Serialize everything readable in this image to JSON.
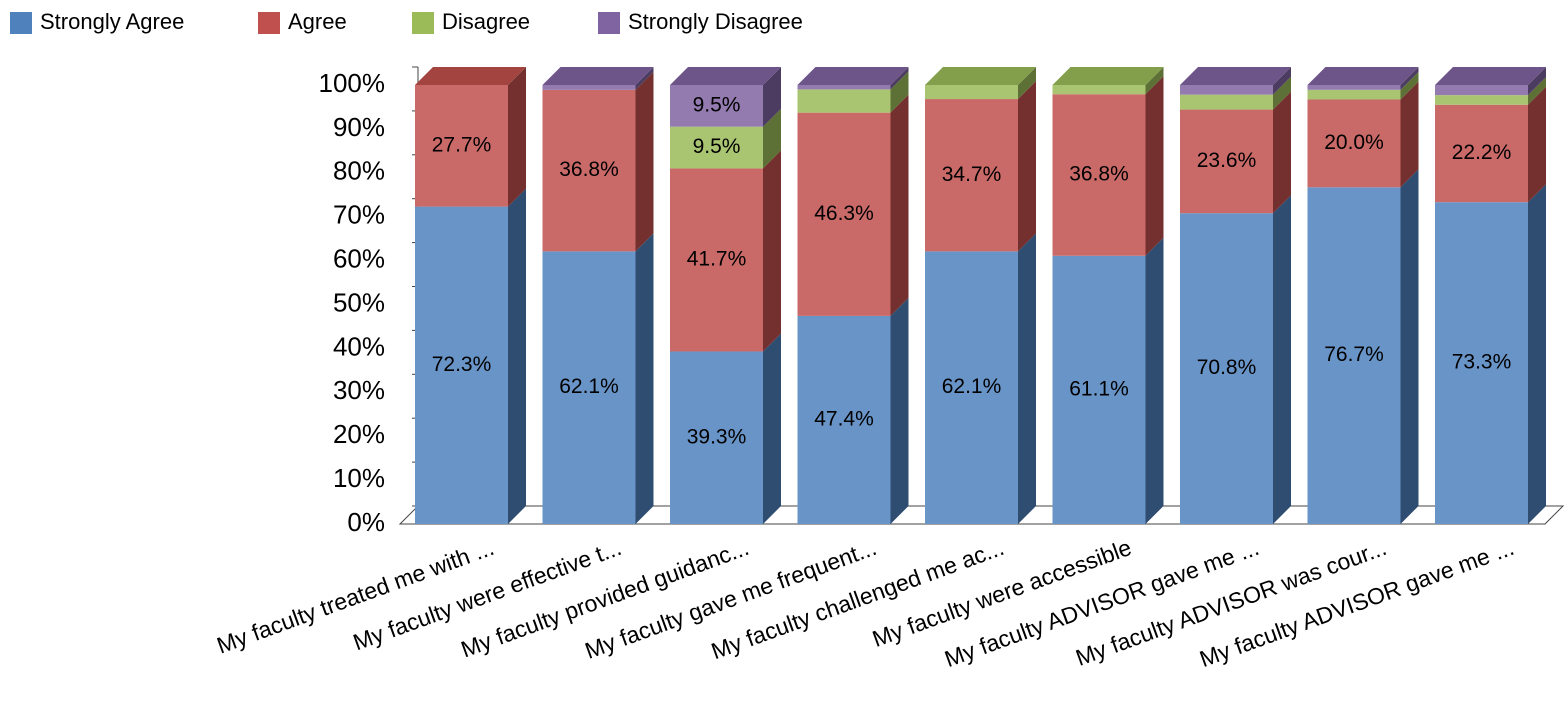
{
  "chart_data": {
    "type": "stacked_bar_3d",
    "categories": [
      "My faculty treated me with ...",
      "My faculty were effective t...",
      "My faculty provided guidanc...",
      "My faculty gave me frequent...",
      "My faculty challenged me ac...",
      "My faculty were accessible",
      "My faculty ADVISOR gave me ...",
      "My faculty ADVISOR was cour...",
      "My faculty ADVISOR gave me ..."
    ],
    "series": [
      {
        "name": "Strongly Agree",
        "color": "#4f81bd",
        "values": [
          72.3,
          62.1,
          39.3,
          47.4,
          62.1,
          61.1,
          70.8,
          76.7,
          73.3
        ],
        "value_labels": [
          "72.3%",
          "62.1%",
          "39.3%",
          "47.4%",
          "62.1%",
          "61.1%",
          "70.8%",
          "76.7%",
          "73.3%"
        ]
      },
      {
        "name": "Agree",
        "color": "#c0504d",
        "values": [
          27.7,
          36.8,
          41.7,
          46.3,
          34.7,
          36.8,
          23.6,
          20.0,
          22.2
        ],
        "value_labels": [
          "27.7%",
          "36.8%",
          "41.7%",
          "46.3%",
          "34.7%",
          "36.8%",
          "23.6%",
          "20.0%",
          "22.2%"
        ]
      },
      {
        "name": "Disagree",
        "color": "#9bbb59",
        "values": [
          0,
          0,
          9.5,
          5.3,
          3.2,
          2.1,
          3.4,
          2.2,
          2.2
        ],
        "value_labels": [
          null,
          null,
          "9.5%",
          null,
          null,
          null,
          null,
          null,
          null
        ]
      },
      {
        "name": "Strongly Disagree",
        "color": "#8064a2",
        "values": [
          0,
          1.1,
          9.5,
          1.0,
          0,
          0,
          2.2,
          1.1,
          2.3
        ],
        "value_labels": [
          null,
          null,
          "9.5%",
          null,
          null,
          null,
          null,
          null,
          null
        ]
      }
    ],
    "ylim": [
      0,
      100
    ],
    "yticks": [
      {
        "value": 0,
        "label": "0%"
      },
      {
        "value": 10,
        "label": "10%"
      },
      {
        "value": 20,
        "label": "20%"
      },
      {
        "value": 30,
        "label": "30%"
      },
      {
        "value": 40,
        "label": "40%"
      },
      {
        "value": 50,
        "label": "50%"
      },
      {
        "value": 60,
        "label": "60%"
      },
      {
        "value": 70,
        "label": "70%"
      },
      {
        "value": 80,
        "label": "80%"
      },
      {
        "value": 90,
        "label": "90%"
      },
      {
        "value": 100,
        "label": "100%"
      }
    ],
    "legend": "top-left"
  }
}
